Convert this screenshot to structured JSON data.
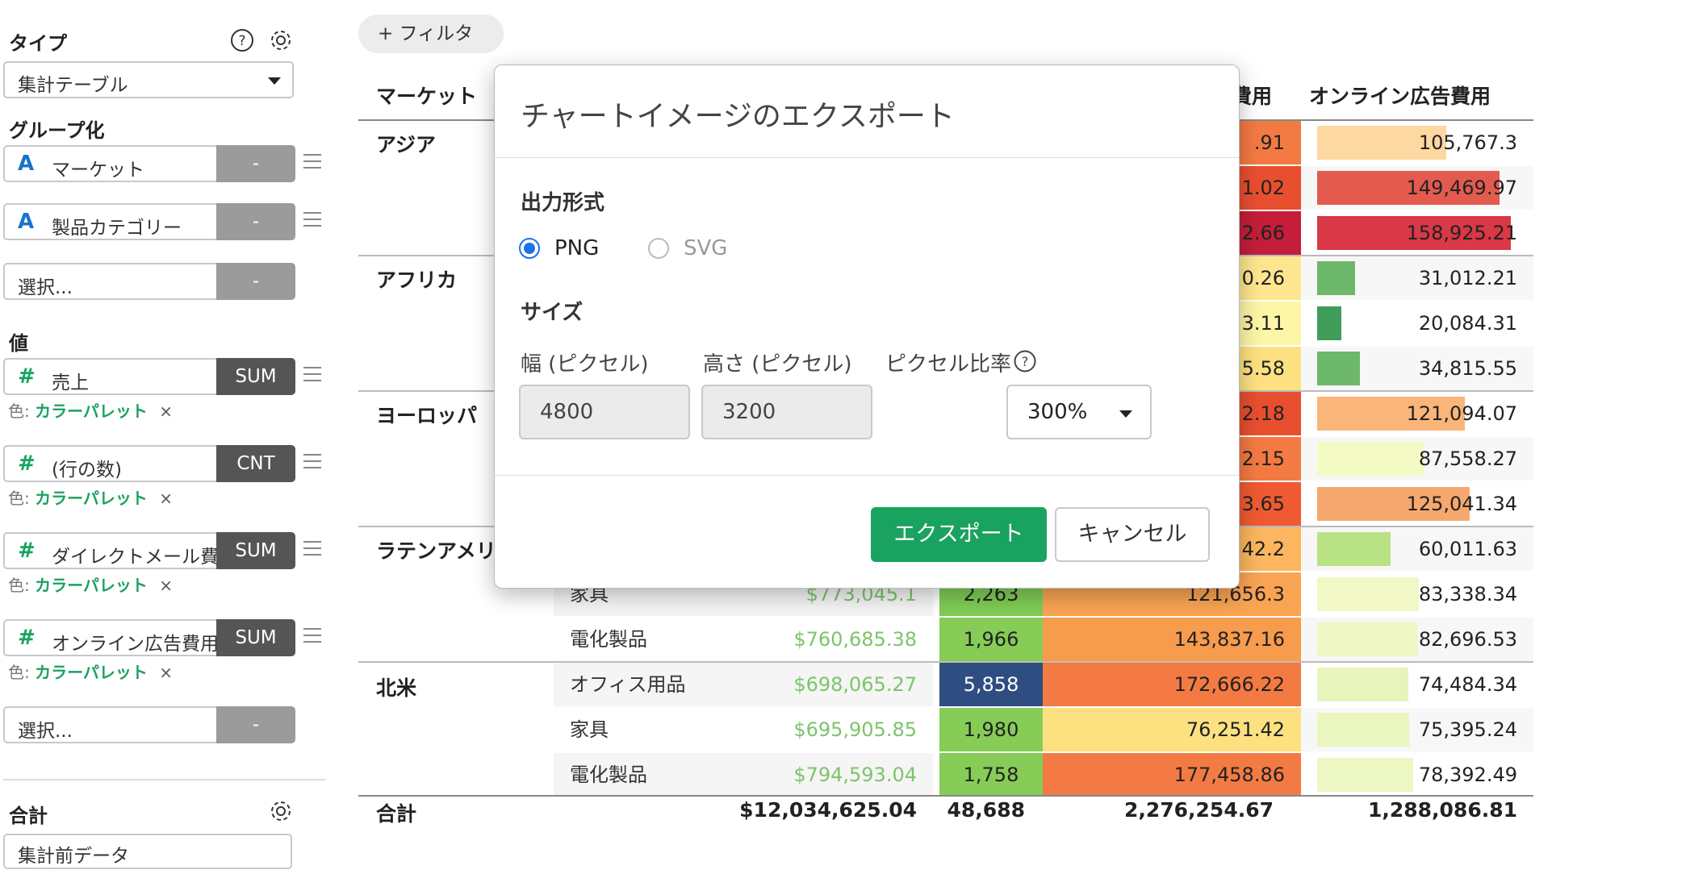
{
  "sidebar": {
    "type_title": "タイプ",
    "type_value": "集計テーブル",
    "group_title": "グループ化",
    "group_fields": [
      {
        "name": "マーケット",
        "agg": "-"
      },
      {
        "name": "製品カテゴリー",
        "agg": "-"
      },
      {
        "name": "選択...",
        "agg": "-"
      }
    ],
    "values_title": "値",
    "value_fields": [
      {
        "name": "売上",
        "agg": "SUM"
      },
      {
        "name": "(行の数)",
        "agg": "CNT"
      },
      {
        "name": "ダイレクトメール費用",
        "agg": "SUM"
      },
      {
        "name": "オンライン広告費用",
        "agg": "SUM"
      },
      {
        "name": "選択...",
        "agg": "-"
      }
    ],
    "color_label": "色:",
    "color_value": "カラーパレット",
    "remove_mark": "×",
    "total_title": "合計",
    "total_value": "集計前データ"
  },
  "main": {
    "filter_label": "+ フィルタ",
    "headers": [
      "マーケット",
      "費用",
      "オンライン広告費用"
    ],
    "groups": [
      "アジア",
      "アフリカ",
      "ヨーロッパ",
      "ラテンアメリカ",
      "北米"
    ],
    "visible_rows": [
      {
        "partial_mail": ".91",
        "online": "105,767.3"
      },
      {
        "partial_mail": "1.02",
        "online": "149,469.97"
      },
      {
        "partial_mail": "2.66",
        "online": "158,925.21"
      },
      {
        "partial_mail": "0.26",
        "online": "31,012.21"
      },
      {
        "partial_mail": "3.11",
        "online": "20,084.31"
      },
      {
        "partial_mail": "5.58",
        "online": "34,815.55"
      },
      {
        "partial_mail": "2.18",
        "online": "121,094.07"
      },
      {
        "partial_mail": "2.15",
        "online": "87,558.27"
      },
      {
        "partial_mail": "3.65",
        "online": "125,041.34"
      },
      {
        "partial_mail": "42.2",
        "online": "60,011.63"
      },
      {
        "category": "家具",
        "sales": "$773,045.1",
        "count": "2,263",
        "mail": "121,656.3",
        "online": "83,338.34"
      },
      {
        "category": "電化製品",
        "sales": "$760,685.38",
        "count": "1,966",
        "mail": "143,837.16",
        "online": "82,696.53"
      },
      {
        "category": "オフィス用品",
        "sales": "$698,065.27",
        "count": "5,858",
        "mail": "172,666.22",
        "online": "74,484.34"
      },
      {
        "category": "家具",
        "sales": "$695,905.85",
        "count": "1,980",
        "mail": "76,251.42",
        "online": "75,395.24"
      },
      {
        "category": "電化製品",
        "sales": "$794,593.04",
        "count": "1,758",
        "mail": "177,458.86",
        "online": "78,392.49"
      }
    ],
    "totals": {
      "label": "合計",
      "sales": "$12,034,625.04",
      "count": "48,688",
      "mail": "2,276,254.67",
      "online": "1,288,086.81"
    }
  },
  "modal": {
    "title": "チャートイメージのエクスポート",
    "format_label": "出力形式",
    "format_options": [
      "PNG",
      "SVG"
    ],
    "format_selected": "PNG",
    "size_label": "サイズ",
    "width_label": "幅 (ピクセル)",
    "width_value": "4800",
    "height_label": "高さ (ピクセル)",
    "height_value": "3200",
    "ratio_label": "ピクセル比率",
    "ratio_value": "300%",
    "export_button": "エクスポート",
    "cancel_button": "キャンセル"
  }
}
